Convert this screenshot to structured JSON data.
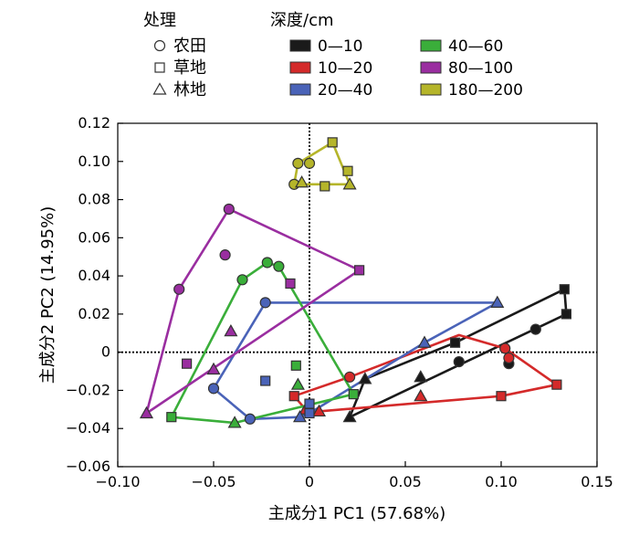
{
  "chart_data": {
    "type": "scatter",
    "xlabel": "主成分1 PC1 (57.68%)",
    "ylabel": "主成分2 PC2 (14.95%)",
    "xlim": [
      -0.1,
      0.15
    ],
    "ylim": [
      -0.06,
      0.12
    ],
    "x_ticks": [
      "−0.10",
      "−0.05",
      "0",
      "0.05",
      "0.10",
      "0.15"
    ],
    "y_ticks": [
      "−0.06",
      "−0.04",
      "−0.02",
      "0",
      "0.02",
      "0.04",
      "0.06",
      "0.08",
      "0.10",
      "0.12"
    ],
    "x_tick_values": [
      -0.1,
      -0.05,
      0,
      0.05,
      0.1,
      0.15
    ],
    "y_tick_values": [
      -0.06,
      -0.04,
      -0.02,
      0,
      0.02,
      0.04,
      0.06,
      0.08,
      0.1,
      0.12
    ],
    "reference_lines": {
      "x": 0,
      "y": 0,
      "style": "dotted"
    },
    "legend": {
      "treatment_title": "处理",
      "treatments": [
        {
          "label": "农田",
          "marker": "circle"
        },
        {
          "label": "草地",
          "marker": "square"
        },
        {
          "label": "林地",
          "marker": "triangle"
        }
      ],
      "depth_title": "深度/cm",
      "depths": [
        {
          "label": "0—10",
          "color": "#1a1a1a"
        },
        {
          "label": "10—20",
          "color": "#d42a2a"
        },
        {
          "label": "20—40",
          "color": "#4a63b8"
        },
        {
          "label": "40—60",
          "color": "#3aae3a"
        },
        {
          "label": "80—100",
          "color": "#9a2ea0"
        },
        {
          "label": "180—200",
          "color": "#b5b52a"
        }
      ]
    },
    "series": [
      {
        "name": "0—10",
        "color": "#1a1a1a",
        "points": [
          {
            "x": 0.076,
            "y": 0.005,
            "m": "square"
          },
          {
            "x": 0.133,
            "y": 0.033,
            "m": "square"
          },
          {
            "x": 0.134,
            "y": 0.02,
            "m": "square"
          },
          {
            "x": 0.078,
            "y": -0.005,
            "m": "circle"
          },
          {
            "x": 0.104,
            "y": -0.006,
            "m": "circle"
          },
          {
            "x": 0.118,
            "y": 0.012,
            "m": "circle"
          },
          {
            "x": 0.058,
            "y": -0.013,
            "m": "triangle"
          },
          {
            "x": 0.021,
            "y": -0.034,
            "m": "triangle"
          },
          {
            "x": 0.029,
            "y": -0.014,
            "m": "triangle"
          }
        ],
        "hull": [
          [
            0.021,
            -0.034
          ],
          [
            0.134,
            0.02
          ],
          [
            0.133,
            0.033
          ],
          [
            0.076,
            0.005
          ],
          [
            0.029,
            -0.014
          ]
        ]
      },
      {
        "name": "10—20",
        "color": "#d42a2a",
        "points": [
          {
            "x": 0.1,
            "y": -0.023,
            "m": "square"
          },
          {
            "x": 0.129,
            "y": -0.017,
            "m": "square"
          },
          {
            "x": -0.008,
            "y": -0.023,
            "m": "square"
          },
          {
            "x": 0.102,
            "y": 0.002,
            "m": "circle"
          },
          {
            "x": 0.104,
            "y": -0.003,
            "m": "circle"
          },
          {
            "x": 0.021,
            "y": -0.013,
            "m": "circle"
          },
          {
            "x": 0.058,
            "y": -0.023,
            "m": "triangle"
          },
          {
            "x": 0.005,
            "y": -0.031,
            "m": "triangle"
          },
          {
            "x": -0.002,
            "y": -0.03,
            "m": "triangle"
          }
        ],
        "hull": [
          [
            -0.008,
            -0.023
          ],
          [
            0.021,
            -0.013
          ],
          [
            0.078,
            0.009
          ],
          [
            0.102,
            0.002
          ],
          [
            0.129,
            -0.017
          ],
          [
            0.1,
            -0.023
          ],
          [
            0.005,
            -0.031
          ],
          [
            -0.002,
            -0.03
          ]
        ]
      },
      {
        "name": "20—40",
        "color": "#4a63b8",
        "points": [
          {
            "x": -0.023,
            "y": 0.026,
            "m": "circle"
          },
          {
            "x": -0.05,
            "y": -0.019,
            "m": "circle"
          },
          {
            "x": -0.031,
            "y": -0.035,
            "m": "circle"
          },
          {
            "x": -0.023,
            "y": -0.015,
            "m": "square"
          },
          {
            "x": 0,
            "y": -0.027,
            "m": "square"
          },
          {
            "x": 0.0,
            "y": -0.032,
            "m": "square"
          },
          {
            "x": 0.098,
            "y": 0.026,
            "m": "triangle"
          },
          {
            "x": -0.005,
            "y": -0.034,
            "m": "triangle"
          },
          {
            "x": 0.06,
            "y": 0.005,
            "m": "triangle"
          }
        ],
        "hull": [
          [
            -0.023,
            0.026
          ],
          [
            0.098,
            0.026
          ],
          [
            0.06,
            0.005
          ],
          [
            0.0,
            -0.032
          ],
          [
            -0.005,
            -0.034
          ],
          [
            -0.031,
            -0.035
          ],
          [
            -0.05,
            -0.019
          ]
        ]
      },
      {
        "name": "40—60",
        "color": "#3aae3a",
        "points": [
          {
            "x": -0.035,
            "y": 0.038,
            "m": "circle"
          },
          {
            "x": -0.022,
            "y": 0.047,
            "m": "circle"
          },
          {
            "x": -0.016,
            "y": 0.045,
            "m": "circle"
          },
          {
            "x": -0.072,
            "y": -0.034,
            "m": "square"
          },
          {
            "x": -0.007,
            "y": -0.007,
            "m": "square"
          },
          {
            "x": 0.023,
            "y": -0.022,
            "m": "square"
          },
          {
            "x": -0.039,
            "y": -0.037,
            "m": "triangle"
          },
          {
            "x": -0.006,
            "y": -0.017,
            "m": "triangle"
          }
        ],
        "hull": [
          [
            -0.072,
            -0.034
          ],
          [
            -0.035,
            0.038
          ],
          [
            -0.022,
            0.047
          ],
          [
            -0.016,
            0.045
          ],
          [
            0.023,
            -0.022
          ],
          [
            -0.039,
            -0.037
          ]
        ]
      },
      {
        "name": "80—100",
        "color": "#9a2ea0",
        "points": [
          {
            "x": -0.042,
            "y": 0.075,
            "m": "circle"
          },
          {
            "x": -0.044,
            "y": 0.051,
            "m": "circle"
          },
          {
            "x": -0.068,
            "y": 0.033,
            "m": "circle"
          },
          {
            "x": 0.026,
            "y": 0.043,
            "m": "square"
          },
          {
            "x": -0.064,
            "y": -0.006,
            "m": "square"
          },
          {
            "x": -0.01,
            "y": 0.036,
            "m": "square"
          },
          {
            "x": -0.085,
            "y": -0.032,
            "m": "triangle"
          },
          {
            "x": -0.041,
            "y": 0.011,
            "m": "triangle"
          },
          {
            "x": -0.05,
            "y": -0.009,
            "m": "triangle"
          }
        ],
        "hull": [
          [
            -0.085,
            -0.032
          ],
          [
            -0.068,
            0.033
          ],
          [
            -0.042,
            0.075
          ],
          [
            0.026,
            0.043
          ]
        ]
      },
      {
        "name": "180—200",
        "color": "#b5b52a",
        "points": [
          {
            "x": -0.006,
            "y": 0.099,
            "m": "circle"
          },
          {
            "x": 0.0,
            "y": 0.099,
            "m": "circle"
          },
          {
            "x": -0.008,
            "y": 0.088,
            "m": "circle"
          },
          {
            "x": 0.012,
            "y": 0.11,
            "m": "square"
          },
          {
            "x": 0.02,
            "y": 0.095,
            "m": "square"
          },
          {
            "x": 0.008,
            "y": 0.087,
            "m": "square"
          },
          {
            "x": -0.004,
            "y": 0.089,
            "m": "triangle"
          },
          {
            "x": 0.021,
            "y": 0.088,
            "m": "triangle"
          }
        ],
        "hull": [
          [
            -0.008,
            0.088
          ],
          [
            -0.006,
            0.099
          ],
          [
            0.012,
            0.11
          ],
          [
            0.021,
            0.088
          ]
        ]
      }
    ]
  }
}
